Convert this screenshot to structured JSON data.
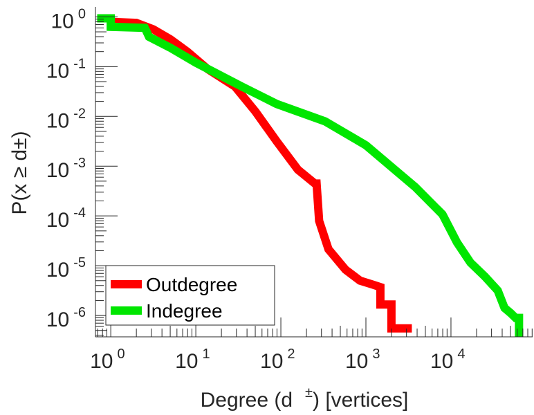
{
  "chart_data": {
    "type": "line",
    "title": "",
    "xlabel": "Degree (d ±) [vertices]",
    "xlabel_parts": {
      "pre": "Degree (d",
      "sup": "±",
      "post": ") [vertices]"
    },
    "ylabel": "P(x ≥ d±)",
    "ylabel_parts": {
      "pre": "P(x ≥ d",
      "sup": "±",
      "post": ")"
    },
    "xscale": "log",
    "yscale": "log",
    "xlim_log10": [
      -0.18,
      4.96
    ],
    "ylim_log10": [
      -6.43,
      0.2
    ],
    "x_ticks": [
      {
        "base": "10",
        "exp": "0",
        "v": 0
      },
      {
        "base": "10",
        "exp": "1",
        "v": 1
      },
      {
        "base": "10",
        "exp": "2",
        "v": 2
      },
      {
        "base": "10",
        "exp": "3",
        "v": 3
      },
      {
        "base": "10",
        "exp": "4",
        "v": 4
      }
    ],
    "y_ticks": [
      {
        "base": "10",
        "exp": "0",
        "v": 0
      },
      {
        "base": "10",
        "exp": "-1",
        "v": -1
      },
      {
        "base": "10",
        "exp": "-2",
        "v": -2
      },
      {
        "base": "10",
        "exp": "-3",
        "v": -3
      },
      {
        "base": "10",
        "exp": "-4",
        "v": -4
      },
      {
        "base": "10",
        "exp": "-5",
        "v": -5
      },
      {
        "base": "10",
        "exp": "-6",
        "v": -6
      }
    ],
    "legend": {
      "position": "bottom-left",
      "entries": [
        "Outdegree",
        "Indegree"
      ]
    },
    "series": [
      {
        "name": "Outdegree",
        "color": "#ff0000",
        "log10_degree": [
          0,
          0.3,
          0.5,
          0.7,
          0.9,
          1.14,
          1.46,
          1.7,
          1.95,
          2.2,
          2.4,
          2.42,
          2.45,
          2.56,
          2.76,
          2.93,
          3.08,
          3.17,
          3.17,
          3.3,
          3.3,
          3.54
        ],
        "log10_P": [
          -0.1,
          -0.12,
          -0.25,
          -0.45,
          -0.7,
          -1.05,
          -1.4,
          -1.9,
          -2.5,
          -3.07,
          -3.35,
          -3.35,
          -4.1,
          -4.67,
          -5.08,
          -5.3,
          -5.38,
          -5.43,
          -5.78,
          -5.78,
          -6.26,
          -6.26
        ]
      },
      {
        "name": "Indegree",
        "color": "#00e600",
        "log10_degree": [
          -0.16,
          0.0,
          0.0,
          0.4,
          0.45,
          0.7,
          1.0,
          1.54,
          1.95,
          2.52,
          3.0,
          3.58,
          3.9,
          4.07,
          4.23,
          4.4,
          4.55,
          4.63,
          4.7,
          4.76,
          4.8,
          4.8
        ],
        "log10_P": [
          -0.03,
          -0.03,
          -0.2,
          -0.22,
          -0.4,
          -0.62,
          -0.92,
          -1.4,
          -1.75,
          -2.1,
          -2.58,
          -3.42,
          -3.97,
          -4.53,
          -4.94,
          -5.22,
          -5.5,
          -5.85,
          -5.95,
          -6.05,
          -6.05,
          -6.43
        ]
      }
    ]
  }
}
